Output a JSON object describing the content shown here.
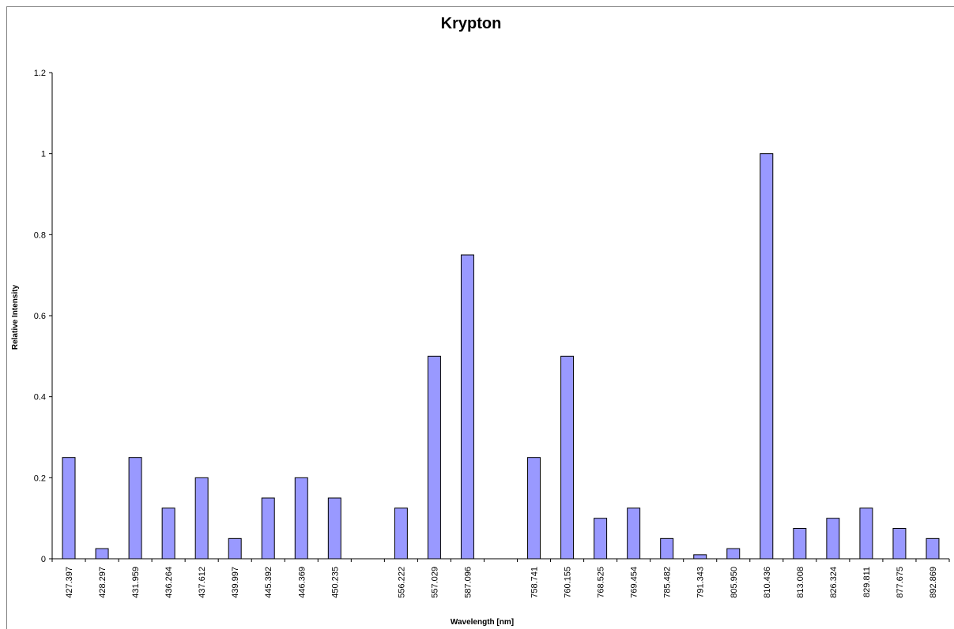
{
  "chart_data": {
    "type": "bar",
    "title": "Krypton",
    "xlabel": "Wavelength [nm]",
    "ylabel": "Relative Intensity",
    "ylim": [
      0,
      1.2
    ],
    "yticks": [
      "0",
      "0.2",
      "0.4",
      "0.6",
      "0.8",
      "1",
      "1.2"
    ],
    "categories": [
      "427.397",
      "428.297",
      "431.959",
      "436.264",
      "437.612",
      "439.997",
      "445.392",
      "446.369",
      "450.235",
      "",
      "556.222",
      "557.029",
      "587.096",
      "",
      "758.741",
      "760.155",
      "768.525",
      "769.454",
      "785.482",
      "791.343",
      "805.950",
      "810.436",
      "813.008",
      "826.324",
      "829.811",
      "877.675",
      "892.869"
    ],
    "values": [
      0.25,
      0.025,
      0.25,
      0.125,
      0.2,
      0.05,
      0.15,
      0.2,
      0.15,
      null,
      0.125,
      0.5,
      0.75,
      null,
      0.25,
      0.5,
      0.1,
      0.125,
      0.05,
      0.01,
      0.025,
      1.0,
      0.075,
      0.1,
      0.125,
      0.075,
      0.05
    ],
    "bar_color": "#9999ff",
    "bar_border_color": "#000000",
    "grid": false,
    "legend": "none"
  }
}
